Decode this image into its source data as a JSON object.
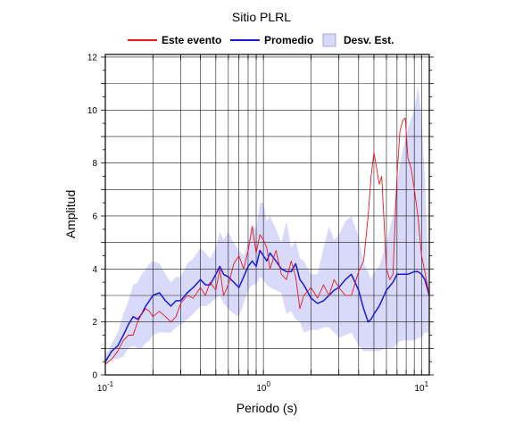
{
  "chart_data": {
    "type": "line",
    "title": "Sitio PLRL",
    "xlabel": "Periodo (s)",
    "ylabel": "Amplitud",
    "xscale": "log",
    "xlim": [
      0.1,
      11.2
    ],
    "ylim": [
      0,
      12.1
    ],
    "grid": true,
    "legend_position": "top",
    "x_ticks": [
      {
        "value": 0.1,
        "base": "10",
        "exp": "-1"
      },
      {
        "value": 1,
        "base": "10",
        "exp": "0"
      },
      {
        "value": 10,
        "base": "10",
        "exp": "1"
      }
    ],
    "y_ticks": [
      {
        "value": 0,
        "label": "0"
      },
      {
        "value": 2,
        "label": "2"
      },
      {
        "value": 4,
        "label": "4"
      },
      {
        "value": 6,
        "label": "6"
      },
      {
        "value": 8,
        "label": "8"
      },
      {
        "value": 10,
        "label": "10"
      },
      {
        "value": 12,
        "label": "12"
      }
    ],
    "legend": [
      {
        "key": "event",
        "label": "Este evento",
        "kind": "line",
        "color": "#e8191e"
      },
      {
        "key": "mean",
        "label": "Promedio",
        "kind": "line",
        "color": "#1a1ad6"
      },
      {
        "key": "std",
        "label": "Desv. Est.",
        "kind": "band",
        "color": "#d9d9fa"
      }
    ],
    "series": [
      {
        "key": "event",
        "color": "#e8191e",
        "x": [
          0.1,
          0.11,
          0.12,
          0.13,
          0.14,
          0.15,
          0.16,
          0.17,
          0.18,
          0.19,
          0.2,
          0.22,
          0.24,
          0.26,
          0.28,
          0.3,
          0.33,
          0.36,
          0.4,
          0.43,
          0.46,
          0.5,
          0.53,
          0.56,
          0.6,
          0.65,
          0.7,
          0.75,
          0.8,
          0.85,
          0.9,
          0.95,
          1.0,
          1.05,
          1.1,
          1.2,
          1.3,
          1.4,
          1.5,
          1.6,
          1.7,
          1.8,
          2.0,
          2.2,
          2.4,
          2.6,
          2.8,
          3.0,
          3.3,
          3.6,
          4.0,
          4.3,
          4.6,
          4.8,
          5.0,
          5.2,
          5.4,
          5.6,
          6.0,
          6.3,
          6.6,
          7.0,
          7.3,
          7.6,
          7.9,
          8.2,
          8.6,
          9.0,
          9.5,
          10.0,
          10.5,
          11.2
        ],
        "y": [
          0.4,
          0.6,
          0.9,
          1.3,
          1.5,
          1.5,
          2.0,
          2.3,
          2.5,
          2.4,
          2.2,
          2.4,
          2.2,
          2.0,
          2.2,
          2.7,
          3.0,
          2.9,
          3.3,
          3.0,
          3.5,
          3.2,
          4.0,
          3.0,
          3.4,
          4.2,
          4.5,
          4.0,
          4.7,
          5.6,
          4.6,
          5.3,
          5.1,
          4.8,
          4.0,
          4.7,
          3.8,
          3.6,
          4.3,
          3.7,
          2.5,
          3.0,
          3.3,
          2.9,
          3.4,
          3.0,
          3.6,
          3.3,
          3.0,
          3.0,
          3.9,
          4.3,
          6.0,
          7.5,
          8.4,
          7.8,
          7.2,
          7.5,
          4.0,
          3.6,
          3.8,
          7.5,
          9.2,
          9.6,
          9.7,
          8.2,
          7.8,
          7.0,
          6.0,
          4.5,
          3.9,
          3.0
        ]
      },
      {
        "key": "mean",
        "color": "#1a1ad6",
        "x": [
          0.1,
          0.11,
          0.12,
          0.13,
          0.14,
          0.15,
          0.16,
          0.17,
          0.18,
          0.19,
          0.2,
          0.22,
          0.24,
          0.26,
          0.28,
          0.3,
          0.33,
          0.36,
          0.4,
          0.43,
          0.46,
          0.5,
          0.53,
          0.56,
          0.6,
          0.65,
          0.7,
          0.75,
          0.8,
          0.85,
          0.9,
          0.95,
          1.0,
          1.05,
          1.1,
          1.2,
          1.3,
          1.4,
          1.5,
          1.6,
          1.7,
          1.8,
          2.0,
          2.2,
          2.4,
          2.6,
          2.8,
          3.0,
          3.3,
          3.6,
          4.0,
          4.3,
          4.6,
          4.8,
          5.0,
          5.4,
          6.0,
          6.6,
          7.0,
          7.6,
          8.2,
          9.0,
          9.5,
          10.0,
          10.5,
          11.2
        ],
        "y": [
          0.5,
          0.9,
          1.1,
          1.5,
          1.9,
          2.2,
          2.1,
          2.3,
          2.6,
          2.8,
          3.0,
          3.1,
          2.8,
          2.6,
          2.8,
          2.8,
          3.1,
          3.3,
          3.6,
          3.4,
          3.4,
          3.8,
          4.1,
          3.8,
          3.7,
          3.5,
          3.3,
          3.7,
          4.1,
          4.3,
          4.1,
          4.7,
          4.5,
          4.3,
          4.6,
          4.3,
          4.0,
          3.9,
          3.9,
          4.2,
          3.6,
          3.4,
          2.9,
          2.7,
          2.8,
          3.0,
          3.2,
          3.3,
          3.6,
          3.8,
          3.2,
          2.5,
          2.0,
          2.1,
          2.3,
          2.6,
          3.2,
          3.5,
          3.8,
          3.8,
          3.8,
          3.9,
          3.9,
          3.8,
          3.6,
          3.0
        ]
      }
    ],
    "band": {
      "key": "std",
      "color": "#d9d9fa",
      "x": [
        0.1,
        0.11,
        0.12,
        0.13,
        0.14,
        0.15,
        0.16,
        0.17,
        0.18,
        0.19,
        0.2,
        0.22,
        0.24,
        0.26,
        0.28,
        0.3,
        0.33,
        0.36,
        0.4,
        0.43,
        0.46,
        0.5,
        0.53,
        0.56,
        0.6,
        0.65,
        0.7,
        0.75,
        0.8,
        0.85,
        0.9,
        0.95,
        1.0,
        1.05,
        1.1,
        1.2,
        1.3,
        1.4,
        1.5,
        1.6,
        1.7,
        1.8,
        2.0,
        2.2,
        2.4,
        2.6,
        2.8,
        3.0,
        3.3,
        3.6,
        4.0,
        4.3,
        4.6,
        4.8,
        5.0,
        5.4,
        6.0,
        6.6,
        7.0,
        7.6,
        8.2,
        9.0,
        9.5,
        10.0,
        10.5,
        11.2
      ],
      "upper": [
        0.7,
        1.2,
        1.6,
        2.3,
        2.8,
        3.4,
        3.5,
        3.8,
        4.0,
        4.2,
        4.3,
        4.2,
        3.8,
        3.5,
        3.7,
        3.7,
        4.2,
        4.4,
        4.8,
        4.6,
        4.4,
        4.8,
        5.4,
        5.1,
        5.4,
        5.0,
        4.7,
        4.5,
        5.0,
        5.7,
        5.5,
        6.5,
        6.5,
        5.8,
        6.0,
        5.5,
        5.0,
        5.8,
        4.8,
        5.1,
        4.4,
        4.3,
        3.8,
        3.8,
        4.8,
        5.6,
        5.1,
        5.3,
        5.8,
        6.0,
        5.2,
        4.2,
        3.9,
        3.6,
        3.9,
        4.1,
        5.0,
        6.0,
        7.3,
        8.5,
        9.3,
        10.0,
        10.9,
        9.8,
        7.5,
        3.0
      ],
      "lower": [
        0.4,
        0.6,
        0.6,
        0.7,
        1.0,
        1.1,
        1.0,
        1.0,
        1.2,
        1.3,
        1.5,
        1.6,
        1.6,
        1.6,
        1.8,
        1.9,
        2.1,
        2.3,
        2.6,
        2.6,
        2.7,
        2.9,
        3.0,
        2.7,
        2.5,
        2.3,
        2.2,
        2.7,
        3.2,
        3.4,
        3.4,
        3.7,
        3.6,
        3.4,
        3.3,
        3.2,
        3.1,
        2.3,
        2.4,
        2.1,
        2.0,
        1.6,
        1.7,
        1.7,
        1.8,
        1.8,
        1.6,
        1.4,
        1.5,
        1.6,
        1.1,
        0.9,
        0.9,
        0.9,
        0.9,
        0.9,
        1.0,
        1.0,
        1.2,
        1.3,
        1.3,
        1.3,
        1.4,
        1.4,
        1.6,
        1.6
      ]
    }
  }
}
